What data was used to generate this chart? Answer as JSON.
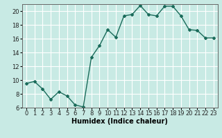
{
  "x": [
    0,
    1,
    2,
    3,
    4,
    5,
    6,
    7,
    8,
    9,
    10,
    11,
    12,
    13,
    14,
    15,
    16,
    17,
    18,
    19,
    20,
    21,
    22,
    23
  ],
  "y": [
    9.5,
    9.8,
    8.7,
    7.2,
    8.3,
    7.7,
    6.4,
    6.1,
    13.3,
    15.0,
    17.3,
    16.2,
    19.3,
    19.5,
    20.8,
    19.5,
    19.3,
    20.7,
    20.7,
    19.3,
    17.3,
    17.2,
    16.1,
    16.1
  ],
  "line_color": "#1a6b5a",
  "marker": "D",
  "marker_size": 2.0,
  "background_color": "#c8eae4",
  "grid_color": "#ffffff",
  "xlabel": "Humidex (Indice chaleur)",
  "ylabel": "",
  "xlim": [
    -0.5,
    23.5
  ],
  "ylim": [
    6,
    21
  ],
  "yticks": [
    6,
    8,
    10,
    12,
    14,
    16,
    18,
    20
  ],
  "xticks": [
    0,
    1,
    2,
    3,
    4,
    5,
    6,
    7,
    8,
    9,
    10,
    11,
    12,
    13,
    14,
    15,
    16,
    17,
    18,
    19,
    20,
    21,
    22,
    23
  ],
  "xlabel_fontsize": 7,
  "tick_fontsize": 6,
  "line_width": 1.0
}
